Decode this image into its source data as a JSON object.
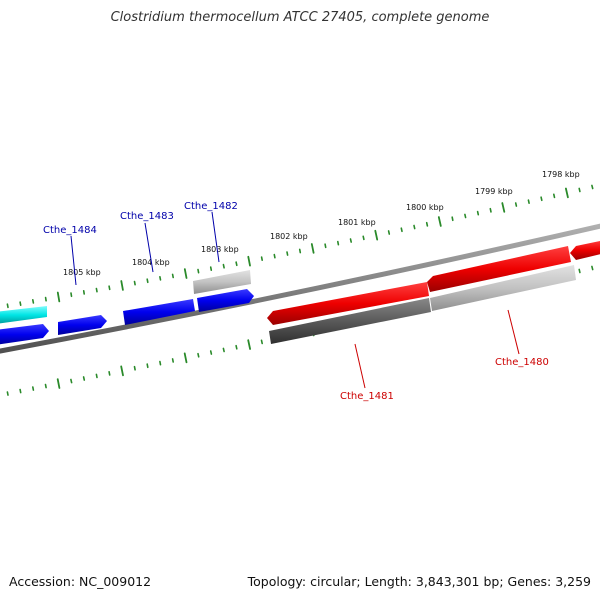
{
  "title": "Clostridium thermocellum ATCC 27405, complete genome",
  "footer": {
    "accession": "Accession: NC_009012",
    "summary": "Topology: circular; Length: 3,843,301 bp; Genes: 3,259"
  },
  "colors": {
    "background": "#ffffff",
    "backbone": "#808080",
    "tick": "#2a8a2a",
    "forward_gene": "#0000ee",
    "reverse_gene": "#ee0000",
    "forward_label": "#0000aa",
    "reverse_label": "#cc0000",
    "cyan_gene": "#00e5e5",
    "gray_light": "#bdbdbd",
    "gray_dark": "#5a5a5a"
  },
  "kbp_labels": [
    "1805 kbp",
    "1804 kbp",
    "1803 kbp",
    "1802 kbp",
    "1801 kbp",
    "1800 kbp",
    "1799 kbp",
    "1798 kbp"
  ],
  "gene_labels": [
    "Cthe_1484",
    "Cthe_1483",
    "Cthe_1482",
    "Cthe_1481",
    "Cthe_1480"
  ]
}
